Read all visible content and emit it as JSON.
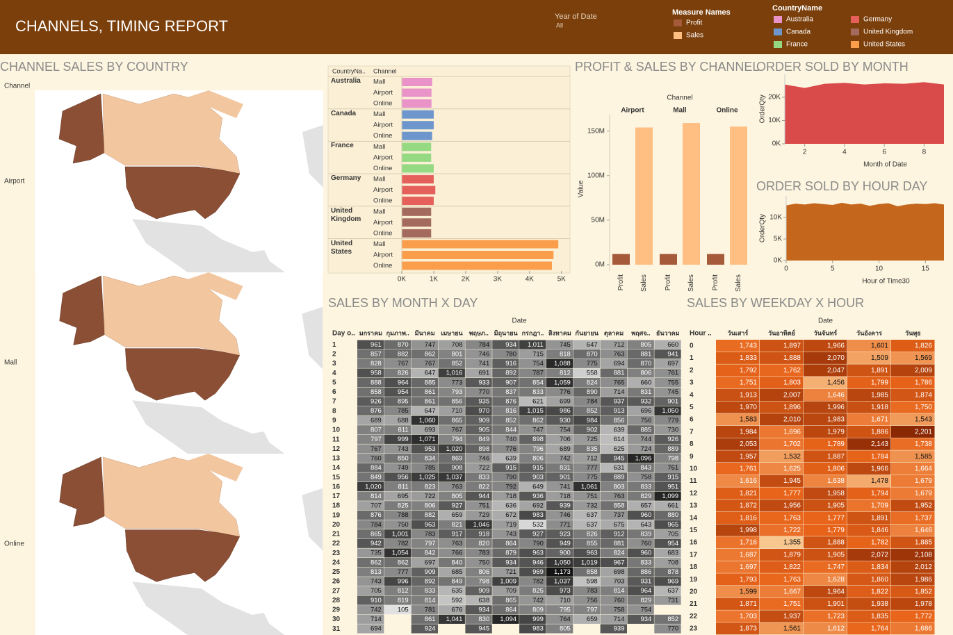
{
  "header": {
    "title": "CHANNELS, TIMING REPORT",
    "filter_label": "Year of Date",
    "filter_value": "All",
    "measure_legend_title": "Measure Names",
    "country_legend_title": "CountryName"
  },
  "map_panel": {
    "title": "CHANNEL SALES BY COUNTRY",
    "row_header": "Channel",
    "rows": [
      "Airport",
      "Mall",
      "Online"
    ]
  },
  "chart_data": [
    {
      "type": "hbar_grouped",
      "row_headers": [
        "CountryNa..",
        "Channel"
      ],
      "series": [
        {
          "name": "Australia",
          "color": "#e993c8",
          "categories": [
            "Mall",
            "Airport",
            "Online"
          ],
          "values": [
            950,
            930,
            930
          ]
        },
        {
          "name": "Canada",
          "color": "#6c96cc",
          "categories": [
            "Mall",
            "Airport",
            "Online"
          ],
          "values": [
            1000,
            1000,
            950
          ]
        },
        {
          "name": "France",
          "color": "#95d982",
          "categories": [
            "Mall",
            "Airport",
            "Online"
          ],
          "values": [
            920,
            920,
            1000
          ]
        },
        {
          "name": "Germany",
          "color": "#e5605a",
          "categories": [
            "Mall",
            "Airport",
            "Online"
          ],
          "values": [
            1000,
            1050,
            1000
          ]
        },
        {
          "name": "United Kingdom",
          "color": "#a56a5e",
          "categories": [
            "Mall",
            "Airport",
            "Online"
          ],
          "values": [
            920,
            920,
            920
          ]
        },
        {
          "name": "United States",
          "color": "#fb9e4c",
          "categories": [
            "Mall",
            "Airport",
            "Online"
          ],
          "values": [
            4900,
            4750,
            4700
          ]
        }
      ],
      "xlim": [
        0,
        5200
      ],
      "xticks": [
        {
          "value": 0,
          "label": "0K"
        },
        {
          "value": 1000,
          "label": "1K"
        },
        {
          "value": 2000,
          "label": "2K"
        },
        {
          "value": 3000,
          "label": "3K"
        },
        {
          "value": 4000,
          "label": "4K"
        },
        {
          "value": 5000,
          "label": "5K"
        }
      ]
    },
    {
      "type": "grouped_bar",
      "title": "PROFIT & SALES BY CHANNEL",
      "column_header": "Channel",
      "ylabel": "Value",
      "categories": [
        "Airport",
        "Mall",
        "Online"
      ],
      "series": [
        {
          "name": "Profit",
          "color": "#a55a3a",
          "values": [
            12000000,
            12000000,
            12000000
          ]
        },
        {
          "name": "Sales",
          "color": "#ffbe82",
          "values": [
            154000000,
            159000000,
            155000000
          ]
        }
      ],
      "ylim": [
        0,
        170000000
      ],
      "yticks": [
        {
          "value": 0,
          "label": "0M"
        },
        {
          "value": 50000000,
          "label": "50M"
        },
        {
          "value": 100000000,
          "label": "100M"
        },
        {
          "value": 150000000,
          "label": "150M"
        }
      ]
    },
    {
      "type": "area",
      "title": "ORDER SOLD BY MONTH",
      "xlabel": "Month of Date",
      "ylabel": "OrderQty",
      "color": "#d94a4a",
      "x": [
        1,
        2,
        3,
        4,
        5,
        6,
        7,
        8,
        9
      ],
      "values": [
        25500,
        24000,
        25800,
        26200,
        25500,
        26000,
        25800,
        26500,
        25500
      ],
      "xlim": [
        1,
        9
      ],
      "xticks": [
        2,
        4,
        6,
        8
      ],
      "ylim": [
        0,
        30000
      ],
      "yticks": [
        {
          "value": 0,
          "label": "0K"
        },
        {
          "value": 10000,
          "label": "10K"
        },
        {
          "value": 20000,
          "label": "20K"
        }
      ]
    },
    {
      "type": "area",
      "title": "ORDER SOLD BY HOUR DAY",
      "xlabel": "Hour of Time30",
      "ylabel": "OrderQty",
      "color": "#c4661c",
      "x": [
        0,
        1,
        2,
        3,
        4,
        5,
        6,
        7,
        8,
        9,
        10,
        11,
        12,
        13,
        14,
        15,
        16,
        17
      ],
      "values": [
        12800,
        13200,
        13000,
        13300,
        13100,
        12900,
        13400,
        13000,
        13200,
        12700,
        13100,
        13300,
        12600,
        13000,
        13200,
        13100,
        13300,
        13000
      ],
      "xlim": [
        0,
        17
      ],
      "xticks": [
        0,
        5,
        10,
        15
      ],
      "ylim": [
        0,
        15000
      ],
      "yticks": [
        {
          "value": 0,
          "label": "0K"
        },
        {
          "value": 5000,
          "label": "5K"
        },
        {
          "value": 10000,
          "label": "10K"
        }
      ]
    }
  ],
  "month_day_table": {
    "title": "SALES BY MONTH X DAY",
    "column_group": "Date",
    "row_header": "Day o..",
    "columns": [
      "มกราคม",
      "กุมภาพ..",
      "มีนาคม",
      "เมษายน",
      "พฤษภ..",
      "มิถุนายน",
      "กรกฎา..",
      "สิงหาคม",
      "กันยายน",
      "ตุลาคม",
      "พฤศจ..",
      "ธันวาคม"
    ],
    "row_labels": [
      "1",
      "2",
      "3",
      "4",
      "5",
      "6",
      "7",
      "8",
      "9",
      "10",
      "11",
      "12",
      "13",
      "14",
      "15",
      "16",
      "17",
      "18",
      "19",
      "20",
      "21",
      "22",
      "23",
      "24",
      "25",
      "26",
      "27",
      "28",
      "29",
      "30",
      "31"
    ],
    "cells": [
      [
        "961",
        "870",
        "747",
        "708",
        "784",
        "934",
        "1,011",
        "745",
        "647",
        "712",
        "805",
        "660"
      ],
      [
        "857",
        "882",
        "862",
        "801",
        "746",
        "780",
        "715",
        "818",
        "870",
        "763",
        "881",
        "941"
      ],
      [
        "828",
        "767",
        "767",
        "852",
        "741",
        "916",
        "754",
        "1,088",
        "775",
        "694",
        "870",
        "697"
      ],
      [
        "958",
        "826",
        "647",
        "1,016",
        "691",
        "892",
        "787",
        "812",
        "558",
        "881",
        "806",
        "761"
      ],
      [
        "888",
        "964",
        "885",
        "773",
        "933",
        "907",
        "854",
        "1,059",
        "824",
        "765",
        "660",
        "755"
      ],
      [
        "858",
        "954",
        "861",
        "793",
        "770",
        "837",
        "833",
        "776",
        "890",
        "714",
        "831",
        "745"
      ],
      [
        "926",
        "895",
        "861",
        "856",
        "935",
        "876",
        "621",
        "699",
        "784",
        "937",
        "932",
        "901"
      ],
      [
        "876",
        "785",
        "647",
        "710",
        "970",
        "816",
        "1,015",
        "986",
        "852",
        "913",
        "696",
        "1,050"
      ],
      [
        "689",
        "688",
        "1,060",
        "865",
        "909",
        "852",
        "862",
        "930",
        "984",
        "856",
        "756",
        "779"
      ],
      [
        "807",
        "811",
        "693",
        "767",
        "905",
        "844",
        "747",
        "754",
        "902",
        "639",
        "885",
        "730"
      ],
      [
        "797",
        "999",
        "1,071",
        "794",
        "849",
        "740",
        "898",
        "706",
        "725",
        "614",
        "744",
        "926"
      ],
      [
        "767",
        "743",
        "953",
        "1,020",
        "898",
        "776",
        "796",
        "689",
        "835",
        "625",
        "724",
        "889"
      ],
      [
        "760",
        "850",
        "834",
        "869",
        "746",
        "639",
        "806",
        "742",
        "712",
        "945",
        "1,096",
        "798"
      ],
      [
        "884",
        "749",
        "785",
        "908",
        "722",
        "915",
        "915",
        "831",
        "777",
        "631",
        "843",
        "761"
      ],
      [
        "849",
        "956",
        "1,025",
        "1,037",
        "833",
        "790",
        "903",
        "901",
        "775",
        "889",
        "758",
        "915"
      ],
      [
        "1,020",
        "811",
        "823",
        "763",
        "822",
        "792",
        "649",
        "741",
        "1,061",
        "803",
        "833",
        "951"
      ],
      [
        "814",
        "695",
        "722",
        "805",
        "944",
        "718",
        "936",
        "718",
        "751",
        "763",
        "829",
        "1,099"
      ],
      [
        "707",
        "825",
        "806",
        "927",
        "751",
        "636",
        "692",
        "939",
        "732",
        "858",
        "657",
        "661"
      ],
      [
        "876",
        "788",
        "882",
        "659",
        "729",
        "672",
        "983",
        "746",
        "637",
        "737",
        "960",
        "880"
      ],
      [
        "784",
        "750",
        "963",
        "821",
        "1,046",
        "719",
        "532",
        "771",
        "637",
        "675",
        "643",
        "965"
      ],
      [
        "865",
        "1,001",
        "783",
        "917",
        "918",
        "743",
        "927",
        "923",
        "826",
        "912",
        "839",
        "705"
      ],
      [
        "942",
        "782",
        "797",
        "763",
        "820",
        "864",
        "790",
        "949",
        "855",
        "881",
        "760",
        "954"
      ],
      [
        "735",
        "1,054",
        "842",
        "766",
        "783",
        "879",
        "963",
        "900",
        "963",
        "824",
        "960",
        "683"
      ],
      [
        "862",
        "862",
        "697",
        "840",
        "750",
        "934",
        "946",
        "1,050",
        "1,019",
        "967",
        "833",
        "708"
      ],
      [
        "813",
        "777",
        "909",
        "685",
        "806",
        "721",
        "969",
        "1,173",
        "858",
        "698",
        "886",
        "878"
      ],
      [
        "743",
        "996",
        "892",
        "849",
        "798",
        "1,009",
        "782",
        "1,037",
        "598",
        "703",
        "931",
        "969"
      ],
      [
        "705",
        "812",
        "833",
        "635",
        "909",
        "709",
        "825",
        "973",
        "783",
        "814",
        "964",
        "637"
      ],
      [
        "910",
        "819",
        "814",
        "592",
        "638",
        "865",
        "742",
        "710",
        "756",
        "760",
        "829",
        "731"
      ],
      [
        "742",
        "105",
        "781",
        "676",
        "934",
        "864",
        "809",
        "795",
        "797",
        "758",
        "754",
        null
      ],
      [
        "714",
        null,
        "861",
        "1,041",
        "830",
        "1,094",
        "999",
        "764",
        "659",
        "714",
        "934",
        "852"
      ],
      [
        "694",
        null,
        "924",
        null,
        "945",
        null,
        "983",
        "805",
        null,
        "939",
        null,
        "770"
      ]
    ]
  },
  "weekday_hour_table": {
    "title": "SALES BY WEEKDAY X HOUR",
    "column_group": "Date",
    "row_header": "Hour ..",
    "columns": [
      "วันเสาร์",
      "วันอาทิตย์",
      "วันจันทร์",
      "วันอังคาร",
      "วันพุธ"
    ],
    "row_labels": [
      "0",
      "1",
      "2",
      "3",
      "4",
      "5",
      "6",
      "7",
      "8",
      "9",
      "10",
      "11",
      "12",
      "13",
      "14",
      "15",
      "16",
      "17",
      "18",
      "19",
      "20",
      "21",
      "22",
      "23"
    ],
    "cells": [
      [
        "1,743",
        "1,897",
        "1,966",
        "1,601",
        "1,826"
      ],
      [
        "1,833",
        "1,888",
        "2,070",
        "1,509",
        "1,569"
      ],
      [
        "1,792",
        "1,762",
        "2,047",
        "1,891",
        "2,009"
      ],
      [
        "1,751",
        "1,803",
        "1,456",
        "1,799",
        "1,786"
      ],
      [
        "1,913",
        "2,007",
        "1,646",
        "1,985",
        "1,874"
      ],
      [
        "1,970",
        "1,896",
        "1,996",
        "1,918",
        "1,750"
      ],
      [
        "1,583",
        "2,010",
        "1,983",
        "1,671",
        "1,543"
      ],
      [
        "1,984",
        "1,696",
        "1,979",
        "1,886",
        "2,201"
      ],
      [
        "2,053",
        "1,702",
        "1,789",
        "2,143",
        "1,738"
      ],
      [
        "1,957",
        "1,532",
        "1,887",
        "1,784",
        "1,585"
      ],
      [
        "1,761",
        "1,625",
        "1,806",
        "1,966",
        "1,664"
      ],
      [
        "1,616",
        "1,945",
        "1,638",
        "1,478",
        "1,679"
      ],
      [
        "1,821",
        "1,777",
        "1,958",
        "1,794",
        "1,679"
      ],
      [
        "1,872",
        "1,956",
        "1,905",
        "1,709",
        "1,952"
      ],
      [
        "1,816",
        "1,763",
        "1,777",
        "1,891",
        "1,737"
      ],
      [
        "1,998",
        "1,722",
        "1,779",
        "1,846",
        "1,646"
      ],
      [
        "1,716",
        "1,355",
        "1,888",
        "1,782",
        "1,885"
      ],
      [
        "1,687",
        "1,879",
        "1,905",
        "2,072",
        "2,108"
      ],
      [
        "1,697",
        "1,822",
        "1,747",
        "1,834",
        "2,012"
      ],
      [
        "1,793",
        "1,763",
        "1,628",
        "1,860",
        "1,986"
      ],
      [
        "1,599",
        "1,667",
        "1,964",
        "1,822",
        "1,852"
      ],
      [
        "1,871",
        "1,751",
        "1,901",
        "1,938",
        "1,978"
      ],
      [
        "1,703",
        "1,937",
        "1,723",
        "1,835",
        "1,772"
      ],
      [
        "1,873",
        "1,561",
        "1,612",
        "1,764",
        "1,686"
      ]
    ]
  }
}
